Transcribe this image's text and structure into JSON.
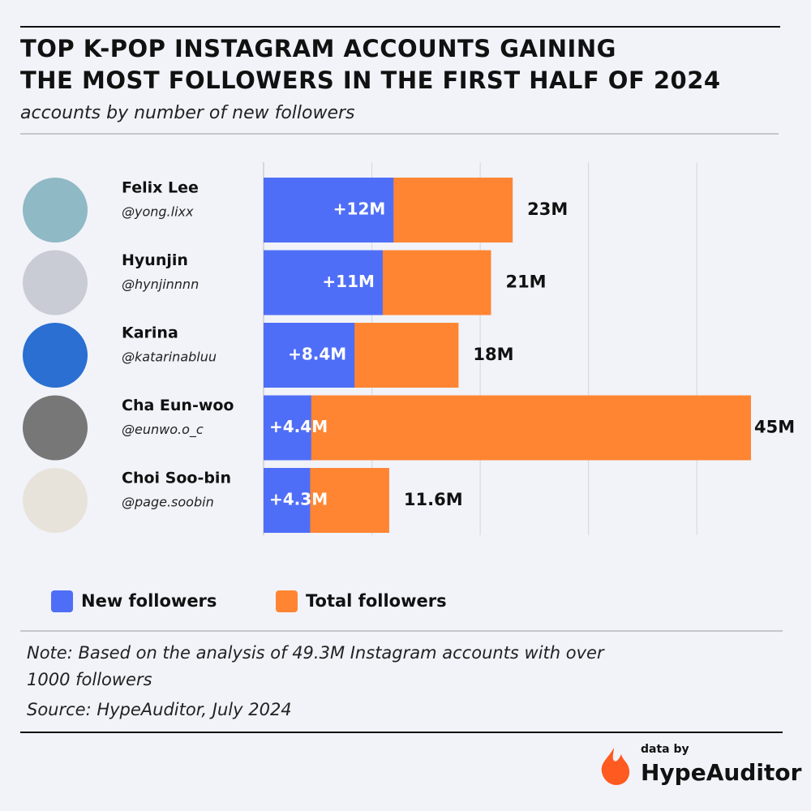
{
  "chart_data": {
    "type": "bar",
    "orientation": "horizontal",
    "overlap": true,
    "title": [
      "TOP K-POP INSTAGRAM ACCOUNTS GAINING",
      "THE MOST FOLLOWERS IN THE FIRST HALF OF 2024"
    ],
    "subtitle": "accounts by number of new followers",
    "categories": [
      "Felix Lee",
      "Hyunjin",
      "Karina",
      "Cha Eun-woo",
      "Choi Soo-bin"
    ],
    "handles": [
      "@yong.lixx",
      "@hynjinnnn",
      "@katarinabluu",
      "@eunwo.o_c",
      "@page.soobin"
    ],
    "series": [
      {
        "name": "New followers",
        "color": "#4f6ef7",
        "values": [
          12,
          11,
          8.4,
          4.4,
          4.3
        ],
        "value_labels": [
          "+12M",
          "+11M",
          "+8.4M",
          "+4.4M",
          "+4.3M"
        ]
      },
      {
        "name": "Total followers",
        "color": "#ff8533",
        "values": [
          23,
          21,
          18,
          45,
          11.6
        ],
        "value_labels": [
          "23M",
          "21M",
          "18M",
          "45M",
          "11.6M"
        ]
      }
    ],
    "xlim": [
      0,
      45
    ],
    "xgrid": [
      10,
      20,
      30,
      40
    ],
    "grid": true,
    "note": [
      "Note: Based on the analysis of 49.3M Instagram accounts with over",
      "1000 followers"
    ],
    "source": "Source: HypeAuditor, July 2024"
  },
  "logo": {
    "caption": "data by",
    "name": "HypeAuditor"
  }
}
